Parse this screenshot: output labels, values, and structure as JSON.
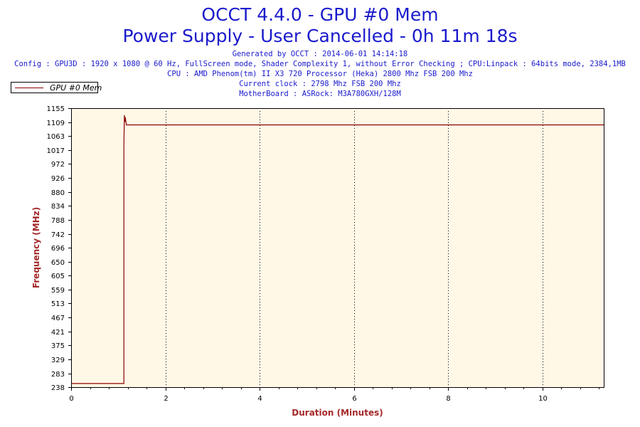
{
  "header": {
    "title_line1": "OCCT 4.4.0 - GPU #0 Mem",
    "title_line2": "Power Supply - User Cancelled - 0h 11m 18s",
    "info_lines": [
      "Generated by OCCT : 2014-06-01 14:14:18",
      "Config : GPU3D : 1920 x 1080 @ 60 Hz, FullScreen mode, Shader Complexity 1, without Error Checking ; CPU:Linpack : 64bits mode, 2384,1MB",
      "CPU : AMD Phenom(tm) II X3 720 Processor (Heka) 2800 Mhz FSB 200 Mhz",
      "Current clock : 2798 Mhz FSB 200 Mhz",
      "MotherBoard : ASRock: M3A780GXH/128M"
    ]
  },
  "colors": {
    "title": "#1a1acc",
    "plot_background": "#fff8e7",
    "series": "#8b0000",
    "axis_title": "#a52a2a"
  },
  "chart_data": {
    "type": "line",
    "title": "OCCT 4.4.0 - GPU #0 Mem",
    "xlabel": "Duration (Minutes)",
    "ylabel": "Frequency (MHz)",
    "xlim": [
      0,
      11.3
    ],
    "ylim": [
      238,
      1155
    ],
    "x_ticks": [
      0,
      2,
      4,
      6,
      8,
      10
    ],
    "y_ticks": [
      238,
      283,
      329,
      375,
      421,
      467,
      513,
      559,
      605,
      650,
      696,
      742,
      788,
      834,
      880,
      926,
      972,
      1017,
      1063,
      1109,
      1155
    ],
    "grid": "vertical dotted",
    "legend": "top-left",
    "series": [
      {
        "name": "GPU #0 Mem",
        "x": [
          0,
          1.12,
          1.12,
          1.13,
          1.14,
          1.15,
          1.17,
          11.3
        ],
        "y": [
          250,
          250,
          1030,
          1132,
          1110,
          1125,
          1100,
          1100
        ]
      }
    ]
  }
}
